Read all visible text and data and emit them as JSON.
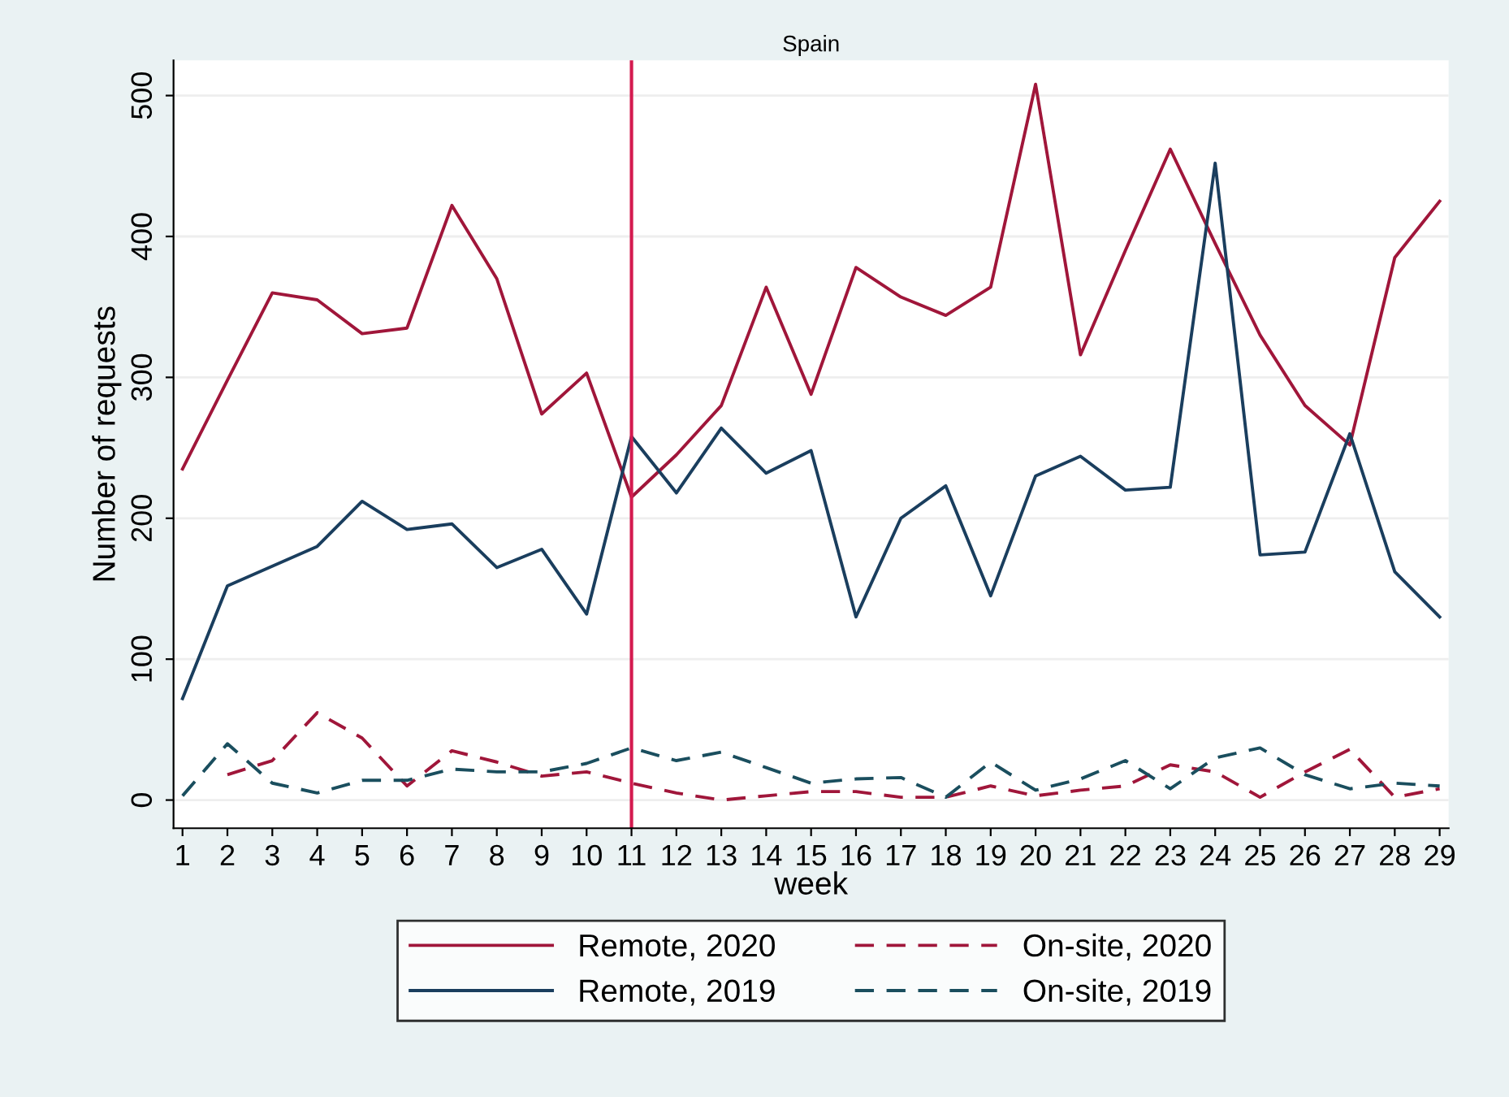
{
  "chart_data": {
    "type": "line",
    "title": "Spain",
    "xlabel": "week",
    "ylabel": "Number of requests",
    "x": [
      1,
      2,
      3,
      4,
      5,
      6,
      7,
      8,
      9,
      10,
      11,
      12,
      13,
      14,
      15,
      16,
      17,
      18,
      19,
      20,
      21,
      22,
      23,
      24,
      25,
      26,
      27,
      28,
      29
    ],
    "xlim": [
      0.8,
      29.2
    ],
    "xticks": [
      1,
      2,
      3,
      4,
      5,
      6,
      7,
      8,
      9,
      10,
      11,
      12,
      13,
      14,
      15,
      16,
      17,
      18,
      19,
      20,
      21,
      22,
      23,
      24,
      25,
      26,
      27,
      28,
      29
    ],
    "ylim": [
      -20,
      525
    ],
    "yticks": [
      0,
      100,
      200,
      300,
      400,
      500
    ],
    "grid": "y",
    "legend": "bottom",
    "ref_lines": [
      {
        "axis": "x",
        "value": 11,
        "color": "#d41a4f",
        "line_style": "solid"
      }
    ],
    "series": [
      {
        "name": "Remote, 2020",
        "color": "#a0163a",
        "line_style": "solid",
        "values": [
          235,
          298,
          360,
          355,
          331,
          335,
          422,
          370,
          274,
          303,
          215,
          245,
          280,
          364,
          288,
          378,
          357,
          344,
          364,
          508,
          316,
          390,
          462,
          395,
          330,
          280,
          252,
          385,
          425
        ]
      },
      {
        "name": "Remote, 2019",
        "color": "#1a3e5e",
        "line_style": "solid",
        "values": [
          72,
          152,
          166,
          180,
          212,
          192,
          196,
          165,
          178,
          132,
          258,
          218,
          264,
          232,
          248,
          130,
          200,
          223,
          145,
          230,
          244,
          220,
          222,
          452,
          174,
          176,
          260,
          162,
          130
        ]
      },
      {
        "name": "On-site, 2020",
        "color": "#a0163a",
        "line_style": "dashed",
        "values": [
          null,
          18,
          28,
          62,
          44,
          10,
          35,
          27,
          17,
          20,
          12,
          5,
          0,
          3,
          6,
          6,
          2,
          2,
          10,
          3,
          7,
          10,
          25,
          20,
          2,
          20,
          36,
          2,
          8
        ]
      },
      {
        "name": "On-site, 2019",
        "color": "#1a4e5e",
        "line_style": "dashed",
        "values": [
          3,
          40,
          12,
          5,
          14,
          14,
          22,
          20,
          20,
          26,
          37,
          28,
          34,
          23,
          12,
          15,
          16,
          2,
          27,
          7,
          15,
          28,
          8,
          30,
          37,
          18,
          8,
          12,
          10
        ]
      }
    ]
  }
}
